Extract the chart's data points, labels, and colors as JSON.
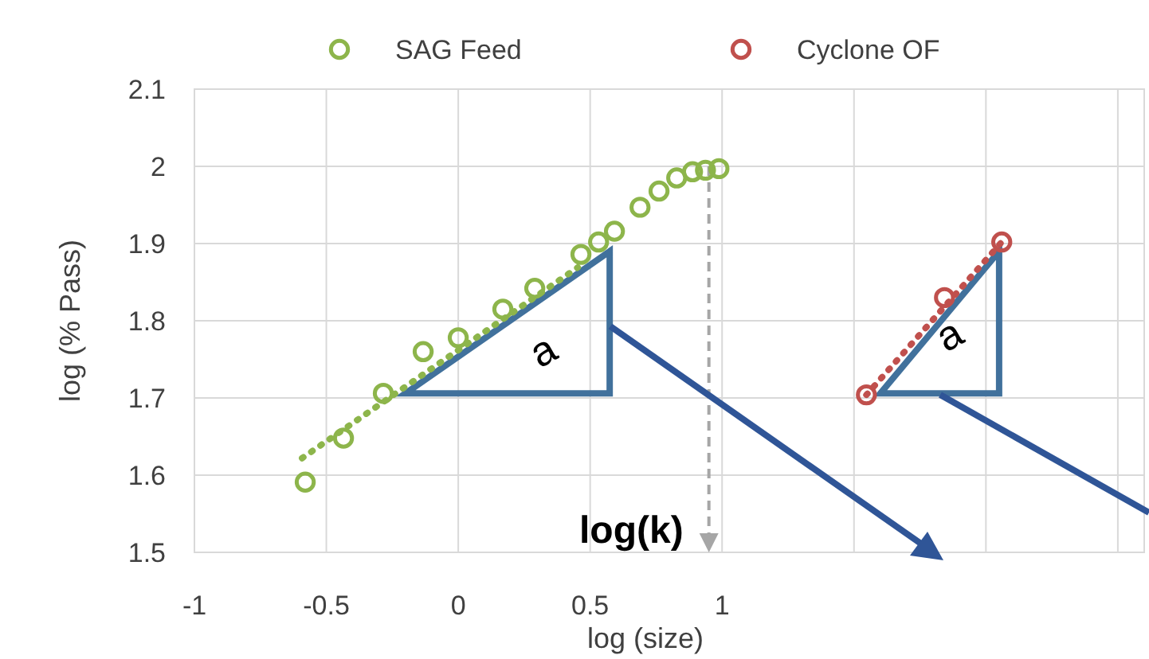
{
  "chart_data": {
    "type": "scatter",
    "xlabel": "log (size)",
    "ylabel": "log (% Pass)",
    "xlim": [
      -1,
      2.6
    ],
    "xticks": [
      -1,
      -0.5,
      0,
      0.5,
      1,
      {
        "value": 1.5,
        "label": null
      },
      {
        "value": 2,
        "label": null
      },
      {
        "value": 2.5,
        "label": null
      }
    ],
    "ylim": [
      1.5,
      2.1
    ],
    "yticks": [
      1.5,
      1.6,
      1.7,
      1.8,
      1.9,
      2,
      2.1
    ],
    "grid": true,
    "legend": "top",
    "marker": "circle",
    "series": [
      {
        "name": "SAG Feed",
        "color": "#8db54b",
        "x": [
          -0.58,
          -0.435,
          -0.284,
          -0.133,
          0,
          0.169,
          0.29,
          0.465,
          0.532,
          0.592,
          0.689,
          0.761,
          0.828,
          0.888,
          0.937,
          0.988
        ],
        "values": [
          1.591,
          1.648,
          1.706,
          1.76,
          1.778,
          1.815,
          1.842,
          1.886,
          1.902,
          1.916,
          1.947,
          1.968,
          1.985,
          1.993,
          1.995,
          1.997
        ]
      },
      {
        "name": "Cyclone OF",
        "color": "#c0504d",
        "x": [
          1.547,
          1.843,
          2.06
        ],
        "values": [
          1.704,
          1.83,
          1.902
        ]
      },
      {
        "type": "line",
        "color": "#8db54b",
        "line_style": "dotted",
        "marker": "none",
        "x": [
          -0.592,
          0.453
        ],
        "values": [
          1.622,
          1.869
        ]
      },
      {
        "type": "line",
        "color": "#c0504d",
        "line_style": "dotted",
        "marker": "none",
        "x": [
          1.547,
          2.06
        ],
        "values": [
          1.704,
          1.902
        ]
      }
    ],
    "ref_lines": [
      {
        "axis": "x",
        "value": 0.95,
        "label": "log(k)",
        "color": "#a6a6a6",
        "line_style": "dashed"
      }
    ],
    "annotations": [
      "a",
      "a"
    ]
  }
}
